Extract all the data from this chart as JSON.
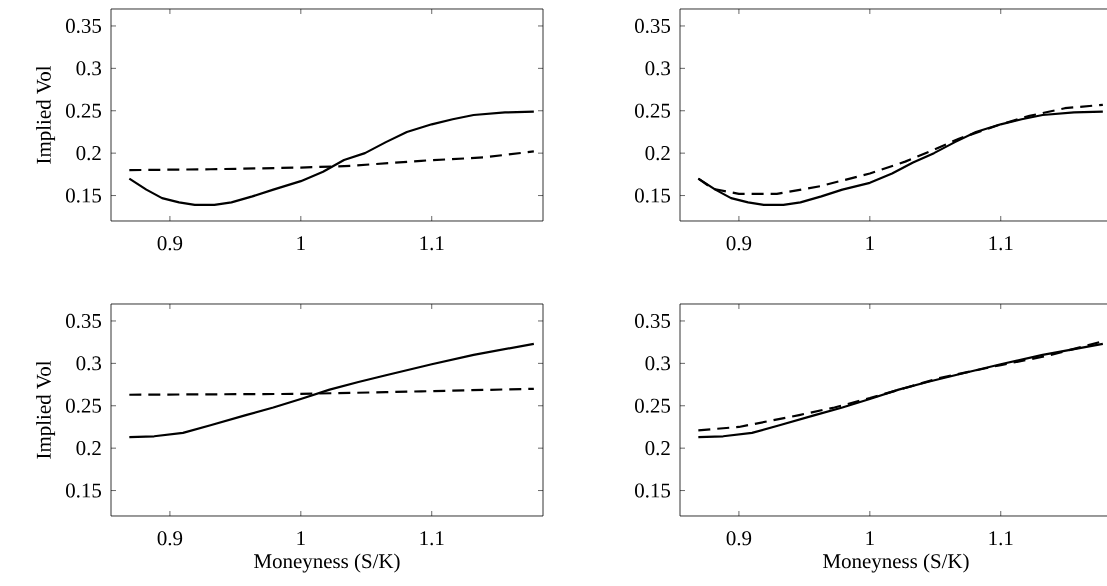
{
  "chart_data": [
    {
      "type": "line",
      "ylabel": "Implied Vol",
      "xlim": [
        0.855,
        1.185
      ],
      "ylim": [
        0.12,
        0.37
      ],
      "xticks": [
        0.9,
        1,
        1.1
      ],
      "yticks": [
        0.15,
        0.2,
        0.25,
        0.3,
        0.35
      ],
      "grid": false,
      "series": [
        {
          "color": "#000000",
          "line_style": "solid",
          "x": [
            0.869,
            0.882,
            0.894,
            0.907,
            0.919,
            0.934,
            0.947,
            0.963,
            0.979,
            1.0,
            1.017,
            1.033,
            1.049,
            1.065,
            1.081,
            1.1,
            1.116,
            1.132,
            1.156,
            1.178
          ],
          "values": [
            0.17,
            0.157,
            0.147,
            0.142,
            0.139,
            0.139,
            0.142,
            0.149,
            0.157,
            0.167,
            0.178,
            0.192,
            0.2,
            0.213,
            0.225,
            0.234,
            0.24,
            0.245,
            0.248,
            0.249
          ]
        },
        {
          "color": "#000000",
          "line_style": "dashed",
          "x": [
            0.869,
            0.931,
            1.0,
            1.038,
            1.092,
            1.14,
            1.178
          ],
          "values": [
            0.18,
            0.181,
            0.183,
            0.185,
            0.191,
            0.195,
            0.202
          ]
        }
      ]
    },
    {
      "type": "line",
      "xlim": [
        0.855,
        1.185
      ],
      "ylim": [
        0.12,
        0.37
      ],
      "xticks": [
        0.9,
        1,
        1.1
      ],
      "yticks": [
        0.15,
        0.2,
        0.25,
        0.3,
        0.35
      ],
      "grid": false,
      "series": [
        {
          "color": "#000000",
          "line_style": "solid",
          "x": [
            0.869,
            0.882,
            0.894,
            0.907,
            0.919,
            0.934,
            0.947,
            0.963,
            0.979,
            1.0,
            1.017,
            1.033,
            1.049,
            1.065,
            1.081,
            1.1,
            1.116,
            1.132,
            1.156,
            1.178
          ],
          "values": [
            0.17,
            0.157,
            0.147,
            0.142,
            0.139,
            0.139,
            0.142,
            0.149,
            0.157,
            0.165,
            0.176,
            0.189,
            0.2,
            0.213,
            0.225,
            0.234,
            0.24,
            0.245,
            0.248,
            0.249
          ]
        },
        {
          "color": "#000000",
          "line_style": "dashed",
          "x": [
            0.869,
            0.88,
            0.9,
            0.929,
            0.962,
            1.0,
            1.027,
            1.049,
            1.068,
            1.1,
            1.122,
            1.149,
            1.178
          ],
          "values": [
            0.17,
            0.158,
            0.152,
            0.152,
            0.161,
            0.176,
            0.19,
            0.204,
            0.217,
            0.234,
            0.244,
            0.253,
            0.257
          ]
        }
      ]
    },
    {
      "type": "line",
      "xlabel": "Moneyness (S/K)",
      "ylabel": "Implied Vol",
      "xlim": [
        0.855,
        1.185
      ],
      "ylim": [
        0.12,
        0.37
      ],
      "xticks": [
        0.9,
        1,
        1.1
      ],
      "yticks": [
        0.15,
        0.2,
        0.25,
        0.3,
        0.35
      ],
      "grid": false,
      "series": [
        {
          "color": "#000000",
          "line_style": "solid",
          "x": [
            0.869,
            0.888,
            0.91,
            0.931,
            0.958,
            0.979,
            1.0,
            1.022,
            1.044,
            1.065,
            1.1,
            1.132,
            1.178
          ],
          "values": [
            0.213,
            0.214,
            0.218,
            0.227,
            0.239,
            0.248,
            0.258,
            0.269,
            0.278,
            0.286,
            0.299,
            0.31,
            0.323
          ]
        },
        {
          "color": "#000000",
          "line_style": "dashed",
          "x": [
            0.869,
            1.0,
            1.065,
            1.092,
            1.178
          ],
          "values": [
            0.263,
            0.264,
            0.266,
            0.267,
            0.27
          ]
        }
      ]
    },
    {
      "type": "line",
      "xlabel": "Moneyness (S/K)",
      "xlim": [
        0.855,
        1.185
      ],
      "ylim": [
        0.12,
        0.37
      ],
      "xticks": [
        0.9,
        1,
        1.1
      ],
      "yticks": [
        0.15,
        0.2,
        0.25,
        0.3,
        0.35
      ],
      "grid": false,
      "series": [
        {
          "color": "#000000",
          "line_style": "solid",
          "x": [
            0.869,
            0.888,
            0.91,
            0.931,
            0.958,
            0.979,
            1.0,
            1.022,
            1.044,
            1.065,
            1.1,
            1.132,
            1.178
          ],
          "values": [
            0.213,
            0.214,
            0.218,
            0.227,
            0.239,
            0.248,
            0.258,
            0.269,
            0.278,
            0.286,
            0.299,
            0.31,
            0.323
          ]
        },
        {
          "color": "#000000",
          "line_style": "dashed",
          "x": [
            0.869,
            0.9,
            0.946,
            0.973,
            1.0,
            1.027,
            1.054,
            1.1,
            1.136,
            1.178
          ],
          "values": [
            0.221,
            0.225,
            0.239,
            0.248,
            0.259,
            0.271,
            0.283,
            0.298,
            0.309,
            0.326
          ]
        }
      ]
    }
  ]
}
